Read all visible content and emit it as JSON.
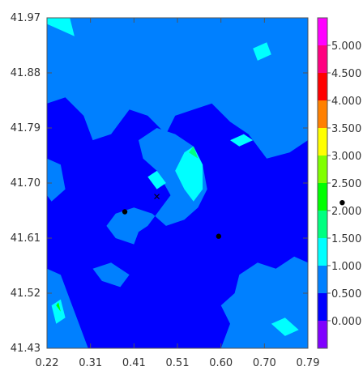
{
  "chart_data": {
    "type": "heatmap",
    "title": "",
    "xlabel": "",
    "ylabel": "",
    "xlim": [
      0.22,
      0.79
    ],
    "ylim": [
      41.43,
      41.97
    ],
    "x_ticks": [
      "0.22",
      "0.31",
      "0.41",
      "0.51",
      "0.60",
      "0.70",
      "0.79"
    ],
    "y_ticks": [
      "41.97",
      "41.88",
      "41.79",
      "41.70",
      "41.61",
      "41.52",
      "41.43"
    ],
    "colorbar": {
      "placement": "right",
      "labels": [
        "0.000",
        "0.500",
        "1.000",
        "1.500",
        "2.000",
        "2.500",
        "3.000",
        "3.500",
        "4.000",
        "4.500",
        "5.000"
      ],
      "colors": [
        "#0000ff",
        "#0080ff",
        "#00ffff",
        "#00ff80",
        "#00ff00",
        "#80ff00",
        "#ffff00",
        "#ff8000",
        "#ff0000",
        "#ff0080",
        "#ff00ff"
      ],
      "below_color": "#8000ff"
    },
    "field_colors": {
      "background": "#0000ff",
      "level1": "#0080ff",
      "level2": "#00ffff",
      "level3": "#00ff80",
      "level4": "#00ff00"
    },
    "contour_regions": [
      {
        "level": 1,
        "points": [
          [
            0.22,
            41.83
          ],
          [
            0.26,
            41.84
          ],
          [
            0.3,
            41.81
          ],
          [
            0.32,
            41.77
          ],
          [
            0.36,
            41.78
          ],
          [
            0.4,
            41.82
          ],
          [
            0.44,
            41.81
          ],
          [
            0.48,
            41.78
          ],
          [
            0.5,
            41.81
          ],
          [
            0.54,
            41.82
          ],
          [
            0.58,
            41.83
          ],
          [
            0.62,
            41.8
          ],
          [
            0.66,
            41.78
          ],
          [
            0.7,
            41.74
          ],
          [
            0.75,
            41.75
          ],
          [
            0.79,
            41.77
          ],
          [
            0.79,
            41.97
          ],
          [
            0.22,
            41.97
          ]
        ]
      },
      {
        "level": 1,
        "points": [
          [
            0.42,
            41.77
          ],
          [
            0.46,
            41.79
          ],
          [
            0.5,
            41.78
          ],
          [
            0.54,
            41.76
          ],
          [
            0.56,
            41.73
          ],
          [
            0.57,
            41.69
          ],
          [
            0.55,
            41.66
          ],
          [
            0.52,
            41.64
          ],
          [
            0.48,
            41.63
          ],
          [
            0.45,
            41.65
          ],
          [
            0.41,
            41.66
          ],
          [
            0.37,
            41.65
          ],
          [
            0.35,
            41.63
          ],
          [
            0.37,
            41.61
          ],
          [
            0.41,
            41.6
          ],
          [
            0.42,
            41.62
          ],
          [
            0.44,
            41.63
          ],
          [
            0.47,
            41.66
          ],
          [
            0.49,
            41.68
          ],
          [
            0.46,
            41.72
          ],
          [
            0.43,
            41.74
          ]
        ]
      },
      {
        "level": 1,
        "points": [
          [
            0.22,
            41.56
          ],
          [
            0.25,
            41.55
          ],
          [
            0.27,
            41.51
          ],
          [
            0.29,
            41.47
          ],
          [
            0.31,
            41.43
          ],
          [
            0.22,
            41.43
          ]
        ]
      },
      {
        "level": 1,
        "points": [
          [
            0.64,
            41.55
          ],
          [
            0.68,
            41.57
          ],
          [
            0.72,
            41.56
          ],
          [
            0.76,
            41.58
          ],
          [
            0.79,
            41.57
          ],
          [
            0.79,
            41.43
          ],
          [
            0.6,
            41.43
          ],
          [
            0.62,
            41.47
          ],
          [
            0.6,
            41.5
          ],
          [
            0.63,
            41.52
          ]
        ]
      },
      {
        "level": 1,
        "points": [
          [
            0.32,
            41.56
          ],
          [
            0.36,
            41.57
          ],
          [
            0.4,
            41.55
          ],
          [
            0.38,
            41.53
          ],
          [
            0.34,
            41.54
          ]
        ]
      },
      {
        "level": 1,
        "points": [
          [
            0.22,
            41.74
          ],
          [
            0.25,
            41.73
          ],
          [
            0.26,
            41.69
          ],
          [
            0.23,
            41.67
          ],
          [
            0.22,
            41.68
          ]
        ]
      },
      {
        "level": 2,
        "points": [
          [
            0.22,
            41.96
          ],
          [
            0.25,
            41.95
          ],
          [
            0.28,
            41.94
          ],
          [
            0.27,
            41.97
          ],
          [
            0.22,
            41.97
          ]
        ]
      },
      {
        "level": 2,
        "points": [
          [
            0.52,
            41.75
          ],
          [
            0.54,
            41.76
          ],
          [
            0.56,
            41.73
          ],
          [
            0.56,
            41.69
          ],
          [
            0.54,
            41.67
          ],
          [
            0.52,
            41.69
          ],
          [
            0.5,
            41.72
          ]
        ]
      },
      {
        "level": 2,
        "points": [
          [
            0.44,
            41.71
          ],
          [
            0.46,
            41.72
          ],
          [
            0.48,
            41.7
          ],
          [
            0.46,
            41.69
          ]
        ]
      },
      {
        "level": 2,
        "points": [
          [
            0.67,
            41.92
          ],
          [
            0.7,
            41.93
          ],
          [
            0.71,
            41.91
          ],
          [
            0.68,
            41.9
          ]
        ]
      },
      {
        "level": 2,
        "points": [
          [
            0.62,
            41.77
          ],
          [
            0.65,
            41.78
          ],
          [
            0.67,
            41.77
          ],
          [
            0.64,
            41.76
          ]
        ]
      },
      {
        "level": 2,
        "points": [
          [
            0.23,
            41.5
          ],
          [
            0.25,
            41.51
          ],
          [
            0.26,
            41.48
          ],
          [
            0.24,
            41.47
          ]
        ]
      },
      {
        "level": 2,
        "points": [
          [
            0.71,
            41.47
          ],
          [
            0.74,
            41.48
          ],
          [
            0.77,
            41.46
          ],
          [
            0.74,
            41.45
          ]
        ]
      },
      {
        "level": 3,
        "points": [
          [
            0.53,
            41.75
          ],
          [
            0.54,
            41.76
          ],
          [
            0.55,
            41.74
          ]
        ]
      },
      {
        "level": 4,
        "points": [
          [
            0.24,
            41.5
          ],
          [
            0.245,
            41.505
          ],
          [
            0.25,
            41.49
          ]
        ]
      }
    ],
    "markers": [
      {
        "x": 0.39,
        "y": 41.653,
        "symbol": "dot"
      },
      {
        "x": 0.595,
        "y": 41.613,
        "symbol": "dot"
      },
      {
        "x": 0.46,
        "y": 41.678,
        "symbol": "x"
      },
      {
        "x": 0.865,
        "y": 41.668,
        "symbol": "dot"
      }
    ],
    "grid": false
  }
}
